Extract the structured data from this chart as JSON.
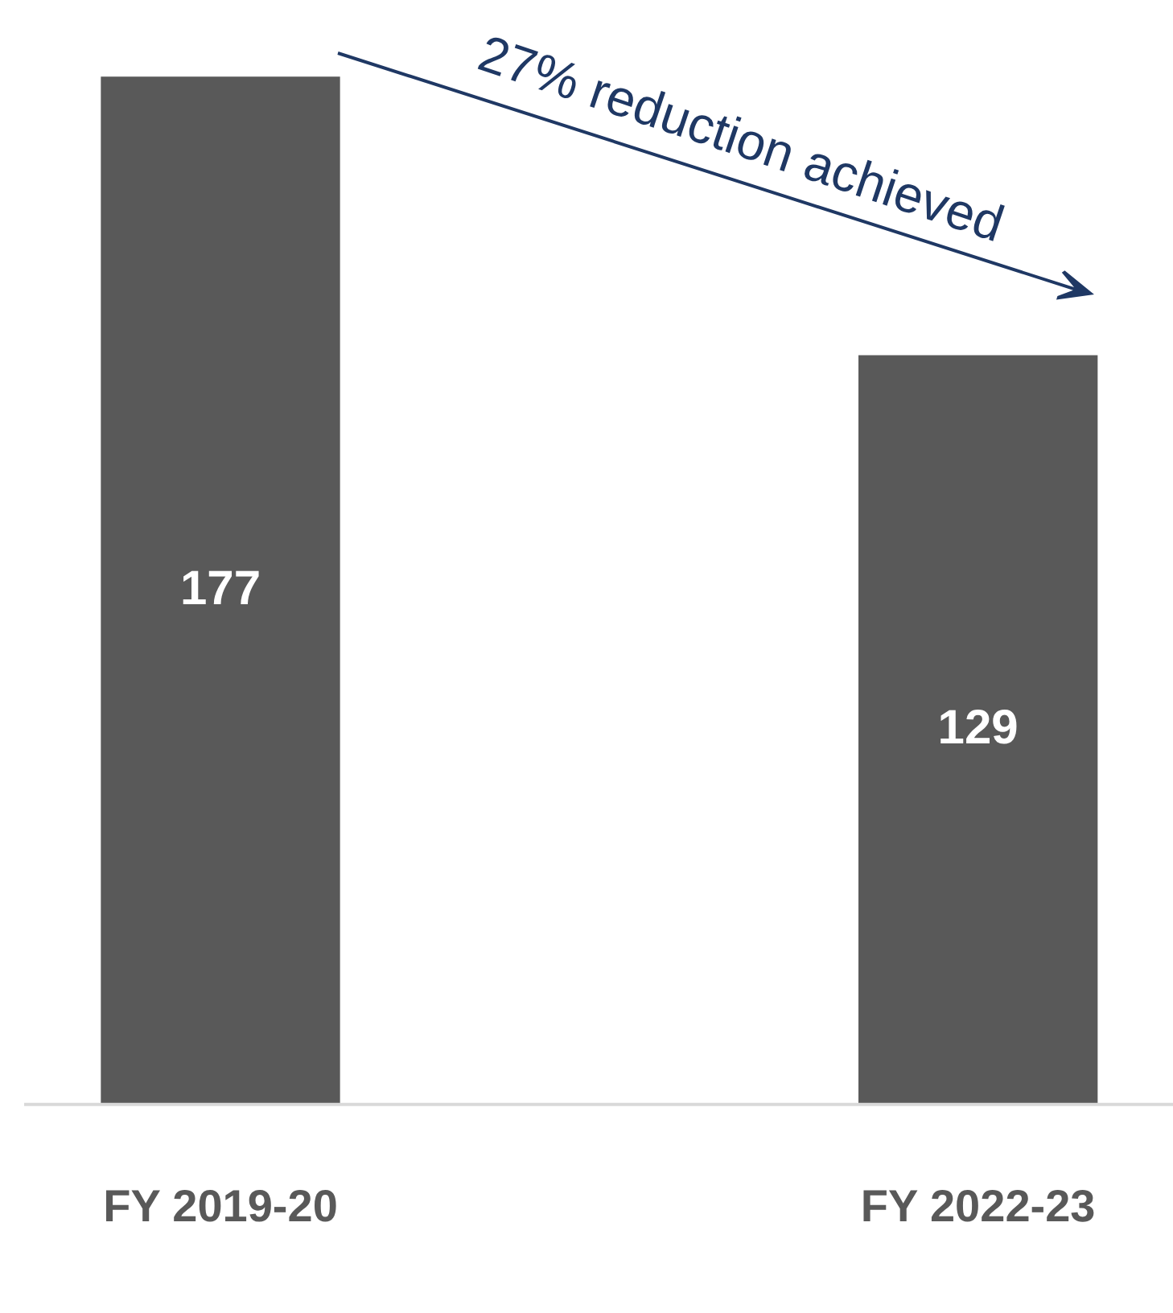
{
  "chart_data": {
    "type": "bar",
    "categories": [
      "FY 2019-20",
      "FY 2022-23"
    ],
    "values": [
      177,
      129
    ],
    "color": "#595959",
    "data_labels": true,
    "tick_labels": "x",
    "legend": false,
    "annotations": [
      "27% reduction achieved"
    ]
  }
}
